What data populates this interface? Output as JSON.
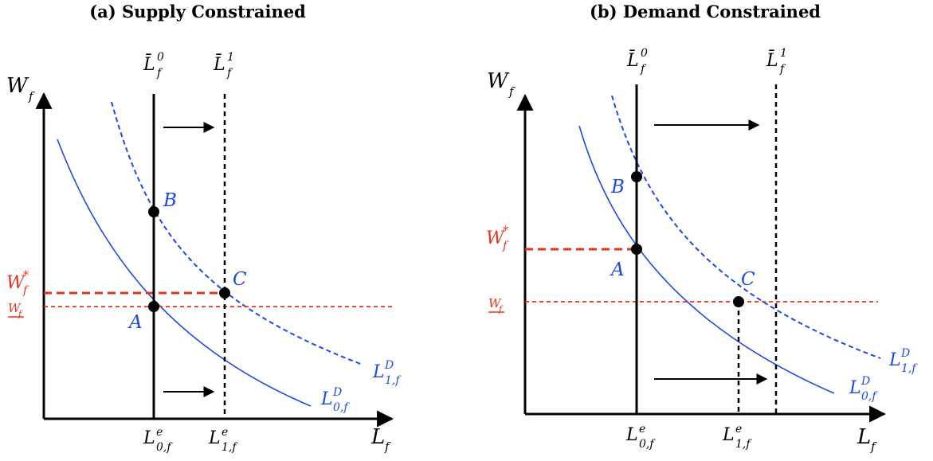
{
  "colors": {
    "axis": "#000000",
    "demand_curve": "#1f49e0",
    "wage_line": "#e8321e",
    "point": "#000000"
  },
  "panels": [
    {
      "id": "a",
      "title": "(a) Supply Constrained",
      "y_axis": {
        "label": "W",
        "sub": "f"
      },
      "x_axis": {
        "label": "L",
        "sub": "f"
      },
      "supply_labels": [
        {
          "main": "L̄",
          "sup": "0",
          "sub": "f"
        },
        {
          "main": "L̄",
          "sup": "1",
          "sub": "f"
        }
      ],
      "x_ticks": [
        {
          "main": "L",
          "sup": "e",
          "sub": "0,f"
        },
        {
          "main": "L",
          "sup": "e",
          "sub": "1,f"
        }
      ],
      "wage_labels": [
        {
          "main": "W",
          "sup": "*",
          "sub": "f"
        },
        {
          "main": "W",
          "sub": "f",
          "underline": "true"
        }
      ],
      "curve_labels": [
        {
          "main": "L",
          "sup": "D",
          "sub": "1,f"
        },
        {
          "main": "L",
          "sup": "D",
          "sub": "0,f"
        }
      ],
      "points": [
        "A",
        "B",
        "C"
      ]
    },
    {
      "id": "b",
      "title": "(b) Demand Constrained",
      "y_axis": {
        "label": "W",
        "sub": "f"
      },
      "x_axis": {
        "label": "L",
        "sub": "f"
      },
      "supply_labels": [
        {
          "main": "L̄",
          "sup": "0",
          "sub": "f"
        },
        {
          "main": "L̄",
          "sup": "1",
          "sub": "f"
        }
      ],
      "x_ticks": [
        {
          "main": "L",
          "sup": "e",
          "sub": "0,f"
        },
        {
          "main": "L",
          "sup": "e",
          "sub": "1,f"
        }
      ],
      "wage_labels": [
        {
          "main": "W",
          "sup": "*",
          "sub": "f"
        },
        {
          "main": "W",
          "sub": "f",
          "underline": "true"
        }
      ],
      "curve_labels": [
        {
          "main": "L",
          "sup": "D",
          "sub": "1,f"
        },
        {
          "main": "L",
          "sup": "D",
          "sub": "0,f"
        }
      ],
      "points": [
        "A",
        "B",
        "C"
      ]
    }
  ]
}
